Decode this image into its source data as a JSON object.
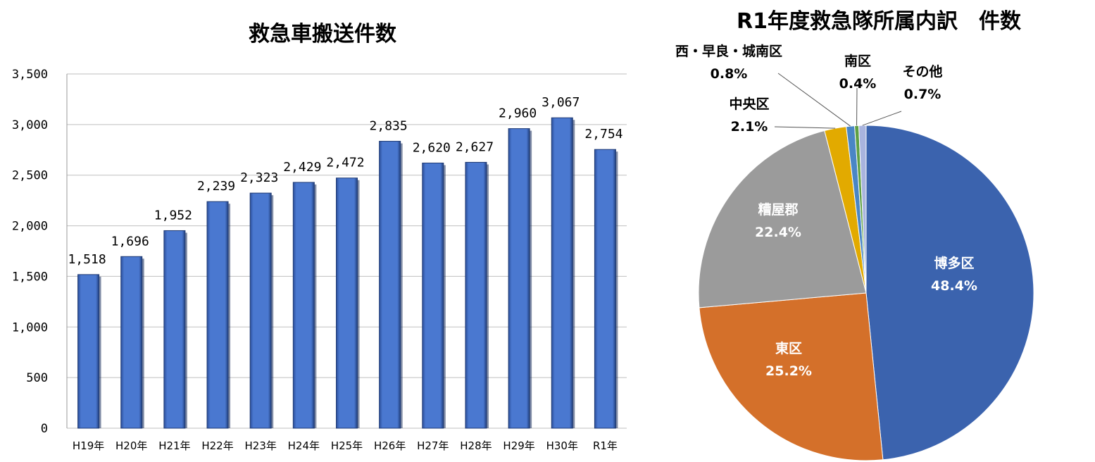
{
  "chart_data": [
    {
      "type": "bar",
      "title": "救急車搬送件数",
      "categories": [
        "H19年",
        "H20年",
        "H21年",
        "H22年",
        "H23年",
        "H24年",
        "H25年",
        "H26年",
        "H27年",
        "H28年",
        "H29年",
        "H30年",
        "R1年"
      ],
      "values": [
        1518,
        1696,
        1952,
        2239,
        2323,
        2429,
        2472,
        2835,
        2620,
        2627,
        2960,
        3067,
        2754
      ],
      "value_labels": [
        "1,518",
        "1,696",
        "1,952",
        "2,239",
        "2,323",
        "2,429",
        "2,472",
        "2,835",
        "2,620",
        "2,627",
        "2,960",
        "3,067",
        "2,754"
      ],
      "ylim": [
        0,
        3500
      ],
      "yticks": [
        0,
        500,
        1000,
        1500,
        2000,
        2500,
        3000,
        3500
      ],
      "ytick_labels": [
        "0",
        "500",
        "1,000",
        "1,500",
        "2,000",
        "2,500",
        "3,000",
        "3,500"
      ],
      "grid": true,
      "bar_color": "#4472C4"
    },
    {
      "type": "pie",
      "title": "R1年度救急隊所属内訳　件数",
      "slices": [
        {
          "label": "博多区",
          "value": 48.4,
          "value_label": "48.4%",
          "color": "#3B63AE"
        },
        {
          "label": "東区",
          "value": 25.2,
          "value_label": "25.2%",
          "color": "#D4702A"
        },
        {
          "label": "糟屋郡",
          "value": 22.4,
          "value_label": "22.4%",
          "color": "#9B9B9B"
        },
        {
          "label": "中央区",
          "value": 2.1,
          "value_label": "2.1%",
          "color": "#E2AA00"
        },
        {
          "label": "西・早良・城南区",
          "value": 0.8,
          "value_label": "0.8%",
          "color": "#4A86C5"
        },
        {
          "label": "南区",
          "value": 0.4,
          "value_label": "0.4%",
          "color": "#5FA044"
        },
        {
          "label": "その他",
          "value": 0.7,
          "value_label": "0.7%",
          "color": "#A9B4DE"
        }
      ]
    }
  ]
}
